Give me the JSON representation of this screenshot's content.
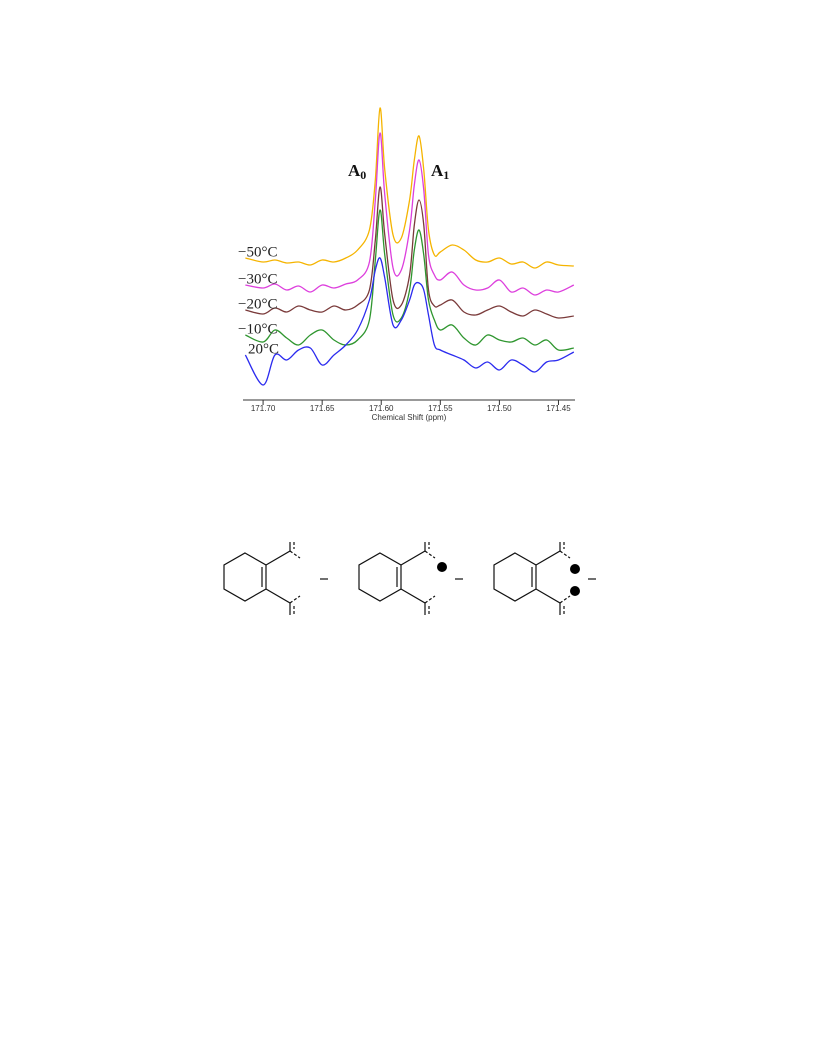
{
  "chart_data": {
    "type": "line",
    "xlabel": "Chemical Shift (ppm)",
    "annotations": [
      {
        "label": "A",
        "subscript": "0"
      },
      {
        "label": "A",
        "subscript": "1"
      }
    ],
    "x": [
      171.715,
      171.7,
      171.69,
      171.68,
      171.67,
      171.66,
      171.65,
      171.64,
      171.63,
      171.62,
      171.61,
      171.605,
      171.601,
      171.597,
      171.59,
      171.583,
      171.576,
      171.572,
      171.568,
      171.564,
      171.56,
      171.555,
      171.55,
      171.54,
      171.53,
      171.52,
      171.51,
      171.5,
      171.49,
      171.48,
      171.47,
      171.46,
      171.45,
      171.437
    ],
    "xlim": [
      171.717,
      171.436
    ],
    "xticks": [
      {
        "value": 171.7,
        "label": "171.70"
      },
      171.65,
      {
        "value": 171.6,
        "label": "171.60"
      },
      171.55,
      {
        "value": 171.5,
        "label": "171.50"
      },
      171.45
    ],
    "ylim": [
      0,
      295
    ],
    "series": [
      {
        "name": "−50°C",
        "color": "#f5b400",
        "values": [
          137,
          133,
          135,
          132,
          133,
          130,
          135,
          133,
          137,
          145,
          165,
          215,
          287,
          225,
          160,
          157,
          195,
          235,
          259,
          225,
          165,
          140,
          143,
          150,
          145,
          135,
          133,
          137,
          131,
          133,
          127,
          133,
          130,
          129
        ]
      },
      {
        "name": "−30°C",
        "color": "#dd3fdd",
        "values": [
          110,
          107,
          111,
          105,
          109,
          103,
          110,
          107,
          111,
          115,
          133,
          195,
          262,
          200,
          127,
          125,
          165,
          210,
          235,
          205,
          140,
          120,
          115,
          123,
          110,
          105,
          107,
          115,
          103,
          107,
          100,
          105,
          103,
          110
        ]
      },
      {
        "name": "−20°C",
        "color": "#7a3a3a",
        "values": [
          85,
          81,
          87,
          83,
          89,
          85,
          83,
          89,
          85,
          90,
          105,
          155,
          208,
          160,
          95,
          90,
          120,
          170,
          195,
          170,
          105,
          89,
          90,
          95,
          83,
          80,
          85,
          89,
          83,
          79,
          85,
          81,
          77,
          79
        ]
      },
      {
        "name": "−10°C",
        "color": "#2f962f",
        "values": [
          60,
          53,
          65,
          57,
          50,
          60,
          65,
          55,
          50,
          55,
          75,
          135,
          185,
          140,
          80,
          77,
          105,
          145,
          165,
          140,
          95,
          75,
          65,
          70,
          57,
          50,
          60,
          55,
          53,
          57,
          50,
          55,
          45,
          47
        ]
      },
      {
        "name": "20°C",
        "color": "#2b2bef",
        "values": [
          40,
          10,
          40,
          35,
          45,
          47,
          30,
          40,
          50,
          65,
          95,
          125,
          137,
          117,
          70,
          75,
          95,
          110,
          112,
          105,
          80,
          50,
          45,
          40,
          35,
          27,
          33,
          25,
          35,
          30,
          23,
          33,
          35,
          43
        ]
      }
    ]
  }
}
